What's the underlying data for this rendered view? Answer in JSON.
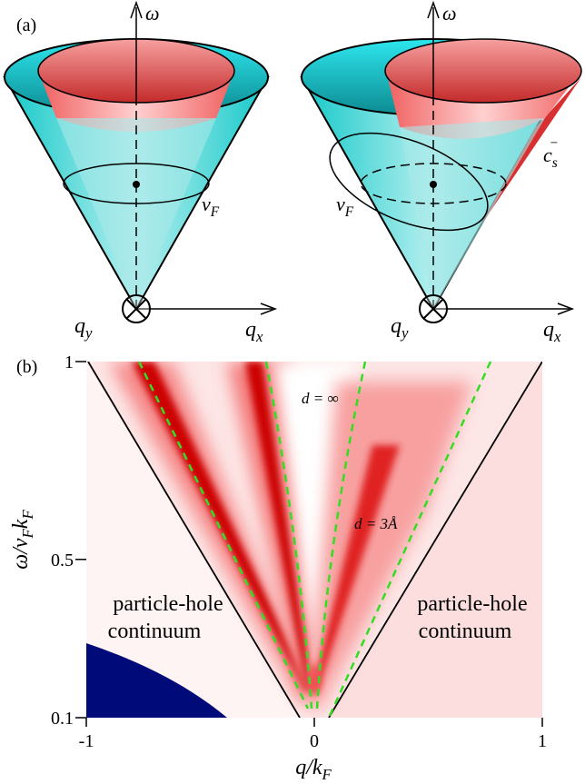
{
  "panel_a": {
    "label": "(a)",
    "left": {
      "omega": "ω",
      "qy": [
        {
          "t": "q"
        },
        {
          "sub": "y"
        }
      ],
      "qx": [
        {
          "t": "q"
        },
        {
          "sub": "x"
        }
      ],
      "vf": [
        {
          "t": "v"
        },
        {
          "sub": "F"
        }
      ]
    },
    "right": {
      "omega": "ω",
      "qy": [
        {
          "t": "q"
        },
        {
          "sub": "y"
        }
      ],
      "qx": [
        {
          "t": "q"
        },
        {
          "sub": "x"
        }
      ],
      "vf": [
        {
          "t": "v"
        },
        {
          "sub": "F"
        }
      ],
      "cs": [
        {
          "t": "c"
        },
        {
          "sub": "s"
        },
        {
          "sup": "−"
        }
      ]
    }
  },
  "panel_b": {
    "label": "(b)",
    "x_label": [
      {
        "t": "q/k"
      },
      {
        "sub": "F"
      }
    ],
    "y_label": [
      {
        "t": "ω/v"
      },
      {
        "sub": "F"
      },
      {
        "t": "k"
      },
      {
        "sub": "F"
      }
    ],
    "xlim": [
      -1,
      1
    ],
    "ylim": [
      0.1,
      1
    ],
    "xticks": [
      -1,
      0,
      1
    ],
    "yticks": [
      0.1,
      0.5,
      1
    ],
    "annotations": {
      "d_inf": "d = ∞",
      "d_3a": "d = 3Å"
    },
    "continuum_left": [
      "particle-hole",
      "continuum"
    ],
    "continuum_right": [
      "particle-hole",
      "continuum"
    ]
  }
}
